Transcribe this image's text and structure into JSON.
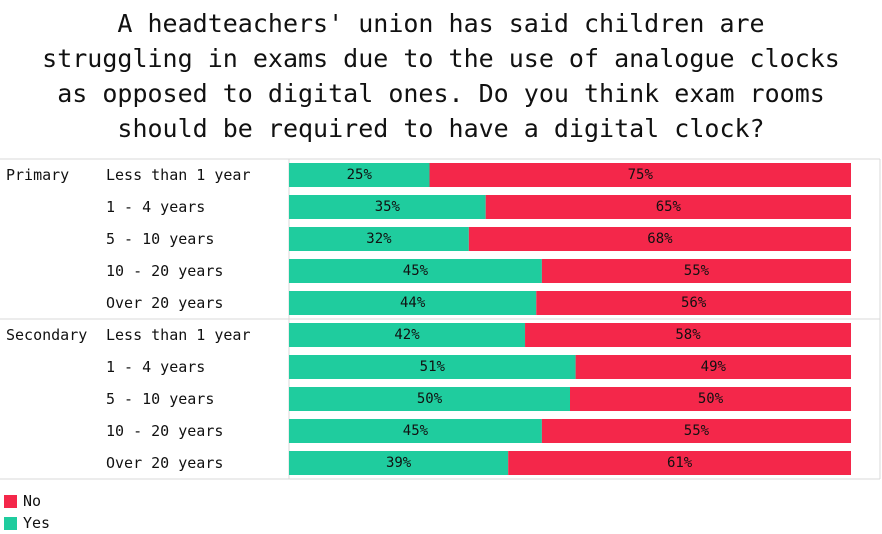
{
  "chart_data": {
    "type": "bar",
    "orientation": "horizontal",
    "stacked": true,
    "percent_stacked": true,
    "title": "A headteachers' union has said children are\nstruggling in exams due to the use of analogue clocks\nas opposed to digital ones. Do you think exam rooms\nshould be required to have a digital clock?",
    "groups": [
      {
        "name": "Primary",
        "categories": [
          "Less than 1 year",
          "1 - 4 years",
          "5 - 10 years",
          "10 - 20 years",
          "Over 20 years"
        ],
        "yes": [
          25,
          35,
          32,
          45,
          44
        ],
        "no": [
          75,
          65,
          68,
          55,
          56
        ]
      },
      {
        "name": "Secondary",
        "categories": [
          "Less than 1 year",
          "1 - 4 years",
          "5 - 10 years",
          "10 - 20 years",
          "Over 20 years"
        ],
        "yes": [
          42,
          51,
          50,
          45,
          39
        ],
        "no": [
          58,
          49,
          50,
          55,
          61
        ]
      }
    ],
    "series": [
      {
        "name": "Yes",
        "color": "#1fcc9e"
      },
      {
        "name": "No",
        "color": "#f4274a"
      }
    ],
    "value_suffix": "%",
    "xlim": [
      0,
      100
    ],
    "legend": {
      "position": "bottom-left",
      "entries": [
        "No",
        "Yes"
      ]
    }
  }
}
